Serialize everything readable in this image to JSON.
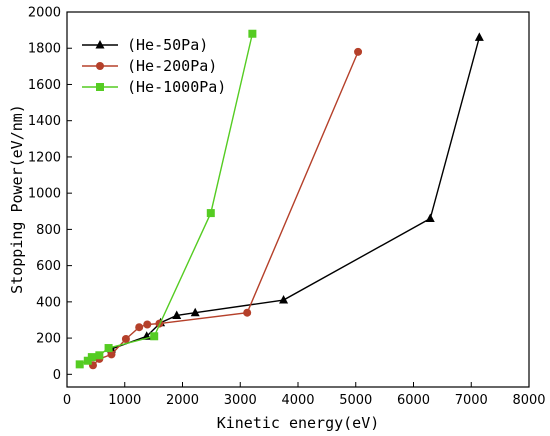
{
  "chart_data": {
    "type": "line",
    "xlabel": "Kinetic energy(eV)",
    "ylabel": "Stopping Power(eV/nm)",
    "xlim": [
      0,
      8000
    ],
    "ylim": [
      -70,
      2000
    ],
    "x_ticks": [
      0,
      1000,
      2000,
      3000,
      4000,
      5000,
      6000,
      7000,
      8000
    ],
    "y_ticks": [
      0,
      200,
      400,
      600,
      800,
      1000,
      1200,
      1400,
      1600,
      1800,
      2000
    ],
    "grid": false,
    "legend_position": "top-left",
    "series": [
      {
        "name": "(He-50Pa)",
        "color": "#000000",
        "marker": "triangle",
        "x": [
          770,
          1380,
          1620,
          1900,
          2220,
          3750,
          6290,
          7140
        ],
        "y": [
          140,
          210,
          285,
          325,
          340,
          410,
          860,
          1860
        ]
      },
      {
        "name": "(He-200Pa)",
        "color": "#b5402a",
        "marker": "circle",
        "x": [
          450,
          560,
          770,
          1020,
          1250,
          1390,
          1600,
          3120,
          5040
        ],
        "y": [
          50,
          85,
          110,
          195,
          260,
          275,
          280,
          340,
          1780
        ]
      },
      {
        "name": "(He-1000Pa)",
        "color": "#55cc22",
        "marker": "square",
        "x": [
          220,
          360,
          430,
          560,
          720,
          1510,
          2490,
          3210
        ],
        "y": [
          55,
          75,
          95,
          105,
          145,
          210,
          890,
          1880
        ]
      }
    ]
  }
}
